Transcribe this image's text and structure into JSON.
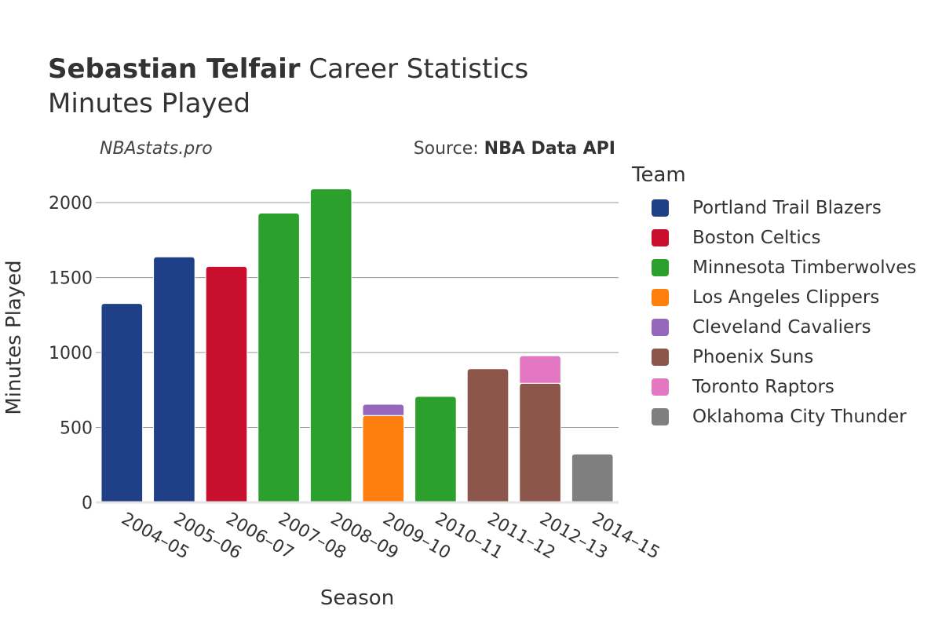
{
  "header": {
    "player": "Sebastian Telfair",
    "title_rest": " Career Statistics",
    "subtitle": "Minutes Played",
    "watermark": "NBAstats.pro",
    "source_prefix": "Source: ",
    "source_name": "NBA Data API"
  },
  "chart_data": {
    "type": "bar",
    "stacked": true,
    "xlabel": "Season",
    "ylabel": "Minutes Played",
    "ylim": [
      0,
      2200
    ],
    "yticks": [
      0,
      500,
      1000,
      1500,
      2000
    ],
    "grid": true,
    "legend_title": "Team",
    "legend_placement": "right",
    "categories": [
      "2004–05",
      "2005–06",
      "2006–07",
      "2007–08",
      "2008–09",
      "2009–10",
      "2010–11",
      "2011–12",
      "2012–13",
      "2014–15"
    ],
    "series": [
      {
        "name": "Portland Trail Blazers",
        "color": "#1f3f87",
        "values": [
          1327,
          1638,
          0,
          0,
          0,
          0,
          0,
          0,
          0,
          0
        ]
      },
      {
        "name": "Boston Celtics",
        "color": "#c8102e",
        "values": [
          0,
          0,
          1575,
          0,
          0,
          0,
          0,
          0,
          0,
          0
        ]
      },
      {
        "name": "Minnesota Timberwolves",
        "color": "#2ca02c",
        "values": [
          0,
          0,
          0,
          1930,
          2092,
          0,
          707,
          0,
          0,
          0
        ]
      },
      {
        "name": "Los Angeles Clippers",
        "color": "#ff7f0e",
        "values": [
          0,
          0,
          0,
          0,
          0,
          580,
          0,
          0,
          0,
          0
        ]
      },
      {
        "name": "Cleveland Cavaliers",
        "color": "#9467bd",
        "values": [
          0,
          0,
          0,
          0,
          0,
          75,
          0,
          0,
          0,
          0
        ]
      },
      {
        "name": "Phoenix Suns",
        "color": "#8c564b",
        "values": [
          0,
          0,
          0,
          0,
          0,
          0,
          0,
          892,
          795,
          0
        ]
      },
      {
        "name": "Toronto Raptors",
        "color": "#e377c2",
        "values": [
          0,
          0,
          0,
          0,
          0,
          0,
          0,
          0,
          183,
          0
        ]
      },
      {
        "name": "Oklahoma City Thunder",
        "color": "#7f7f7f",
        "values": [
          0,
          0,
          0,
          0,
          0,
          0,
          0,
          0,
          0,
          323
        ]
      }
    ]
  }
}
